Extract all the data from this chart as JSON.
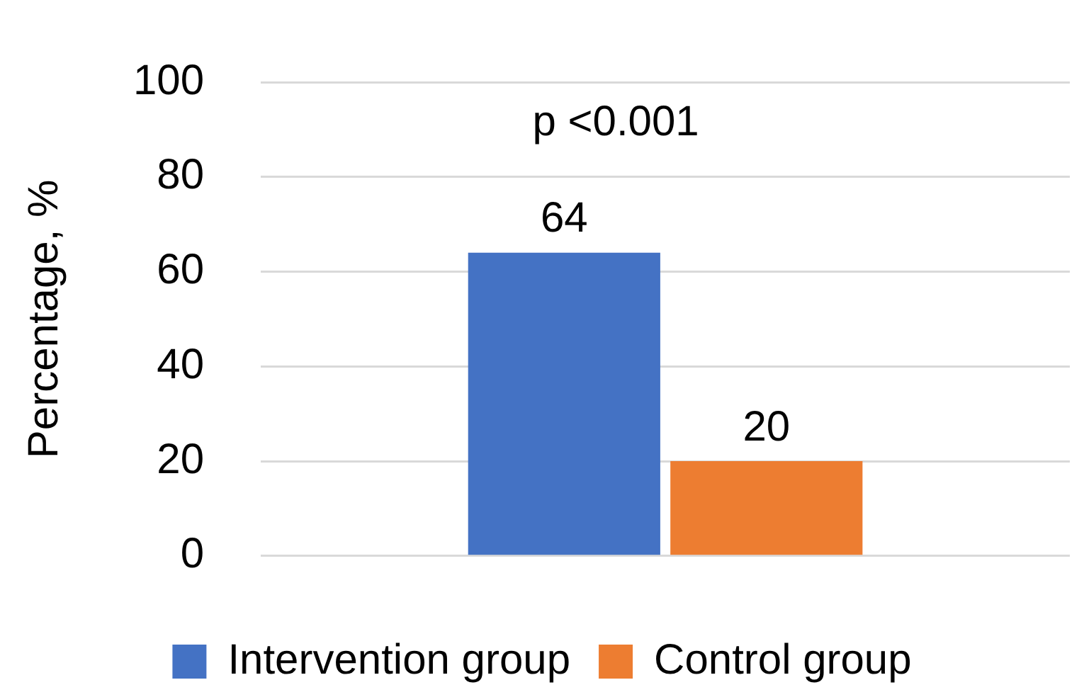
{
  "chart_data": {
    "type": "bar",
    "categories": [
      null
    ],
    "series": [
      {
        "name": "Intervention group",
        "color": "#4472c4",
        "values": [
          64
        ]
      },
      {
        "name": "Control group",
        "color": "#ed7d31",
        "values": [
          20
        ]
      }
    ],
    "ylabel": "Percentage, %",
    "ylim": [
      0,
      100
    ],
    "yticks": [
      0,
      20,
      40,
      60,
      80,
      100
    ],
    "grid": "y",
    "legend": "bottom",
    "data_labels": true,
    "annotations": [
      "p <0.001"
    ]
  }
}
